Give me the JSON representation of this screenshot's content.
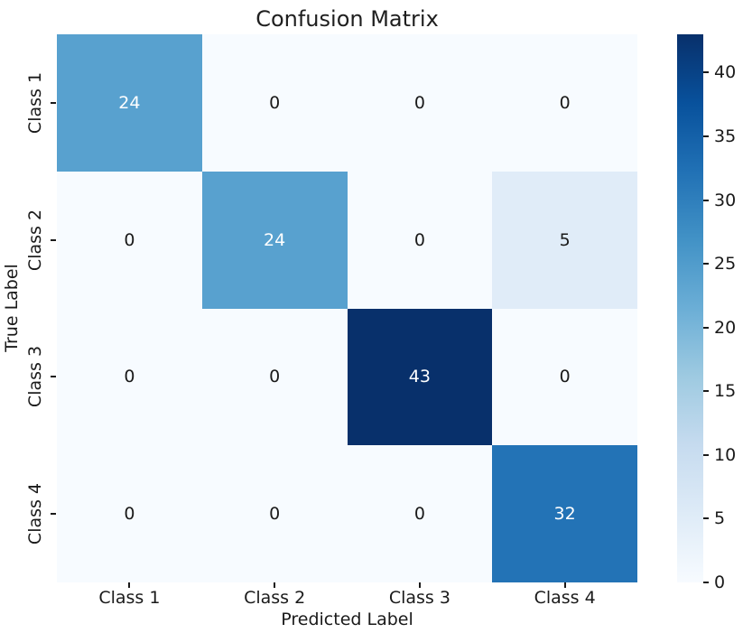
{
  "figure": {
    "background": "#ffffff",
    "text_color": "#1a1a1a"
  },
  "chart_data": {
    "type": "heatmap",
    "title": "Confusion Matrix",
    "xlabel": "Predicted Label",
    "ylabel": "True Label",
    "x_categories": [
      "Class 1",
      "Class 2",
      "Class 3",
      "Class 4"
    ],
    "y_categories": [
      "Class 1",
      "Class 2",
      "Class 3",
      "Class 4"
    ],
    "matrix": [
      [
        24,
        0,
        0,
        0
      ],
      [
        0,
        24,
        0,
        5
      ],
      [
        0,
        0,
        43,
        0
      ],
      [
        0,
        0,
        0,
        32
      ]
    ],
    "vmin": 0,
    "vmax": 43,
    "colormap_name": "Blues",
    "colormap_stops": [
      [
        0.0,
        "#f7fbff"
      ],
      [
        0.125,
        "#deebf7"
      ],
      [
        0.25,
        "#c6dbef"
      ],
      [
        0.375,
        "#9ecae1"
      ],
      [
        0.5,
        "#6baed6"
      ],
      [
        0.625,
        "#4292c6"
      ],
      [
        0.75,
        "#2171b5"
      ],
      [
        0.875,
        "#08519c"
      ],
      [
        1.0,
        "#08306b"
      ]
    ],
    "colorbar_ticks": [
      0,
      5,
      10,
      15,
      20,
      25,
      30,
      35,
      40
    ],
    "annotation_color_dark_bg": "#ffffff",
    "annotation_color_light_bg": "#1a1a1a",
    "legend_position": "right-colorbar",
    "grid": false
  }
}
